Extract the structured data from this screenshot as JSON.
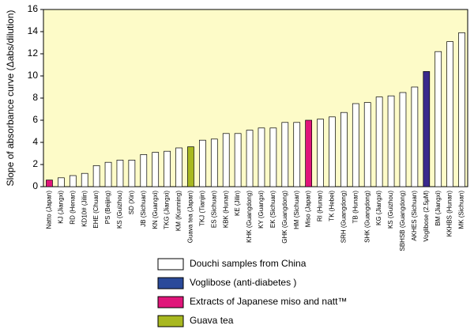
{
  "chart_data": {
    "type": "bar",
    "ylabel": "Slope of absorbance curve (Δabs/dilution)",
    "categories": [
      "Natto (Japan)",
      "KJ (Jiangxi)",
      "RD (Henan)",
      "KD10# (Jilin)",
      "EHE (Chuan)",
      "PS (Beijing)",
      "KS (Guizhou)",
      "SD (Xin)",
      "JB (Sichuan)",
      "KN (Guangxi)",
      "TKG (Jiangxi)",
      "KM (Kunming)",
      "Guava tea (Japan)",
      "TKJ (Tianjin)",
      "ES (Sichuan)",
      "KBK (Hunan)",
      "KE (Jilin)",
      "KHK (Guangdong)",
      "KY (Guangxi)",
      "EK (Sichuan)",
      "GHK (Guangdong)",
      "HM (Sichuan)",
      "Miso (Japan)",
      "RI (Hunan)",
      "TK (Hebei)",
      "SRH (Guangdong)",
      "TB (Hunan)",
      "SHK (Guangdong)",
      "KG (Jiangxi)",
      "KS (Guizhou)",
      "SBHSB (Guangdong)",
      "AKHES (Sichuan)",
      "Voglibose (2.5μM)",
      "BM (Jiangxi)",
      "KKHBS (Hunan)",
      "MK (Sichuan)"
    ],
    "values": [
      0.6,
      0.8,
      1.0,
      1.2,
      1.9,
      2.2,
      2.4,
      2.4,
      2.9,
      3.1,
      3.2,
      3.5,
      3.6,
      4.2,
      4.3,
      4.8,
      4.8,
      5.1,
      5.3,
      5.3,
      5.8,
      5.8,
      6.0,
      6.1,
      6.3,
      6.7,
      7.5,
      7.6,
      8.1,
      8.2,
      8.5,
      9.0,
      10.4,
      12.2,
      13.1,
      13.9
    ],
    "colors": [
      "#e0157a",
      "#ffffff",
      "#ffffff",
      "#ffffff",
      "#ffffff",
      "#ffffff",
      "#ffffff",
      "#ffffff",
      "#ffffff",
      "#ffffff",
      "#ffffff",
      "#ffffff",
      "#a8b820",
      "#ffffff",
      "#ffffff",
      "#ffffff",
      "#ffffff",
      "#ffffff",
      "#ffffff",
      "#ffffff",
      "#ffffff",
      "#ffffff",
      "#e0157a",
      "#ffffff",
      "#ffffff",
      "#ffffff",
      "#ffffff",
      "#ffffff",
      "#ffffff",
      "#ffffff",
      "#ffffff",
      "#ffffff",
      "#3a2a8c",
      "#ffffff",
      "#ffffff",
      "#ffffff"
    ],
    "legend": [
      {
        "label": "Douchi samples from China",
        "color": "#ffffff"
      },
      {
        "label": "Voglibose (anti-diabetes )",
        "color": "#2b4a9a"
      },
      {
        "label": "Extracts of Japanese  miso and natt™",
        "color": "#e0157a"
      },
      {
        "label": "Guava tea",
        "color": "#a8b820"
      }
    ],
    "background": "#fdfbc8",
    "ylim": [
      0,
      16
    ],
    "yticks": [
      0,
      2,
      4,
      6,
      8,
      10,
      12,
      14,
      16
    ]
  }
}
